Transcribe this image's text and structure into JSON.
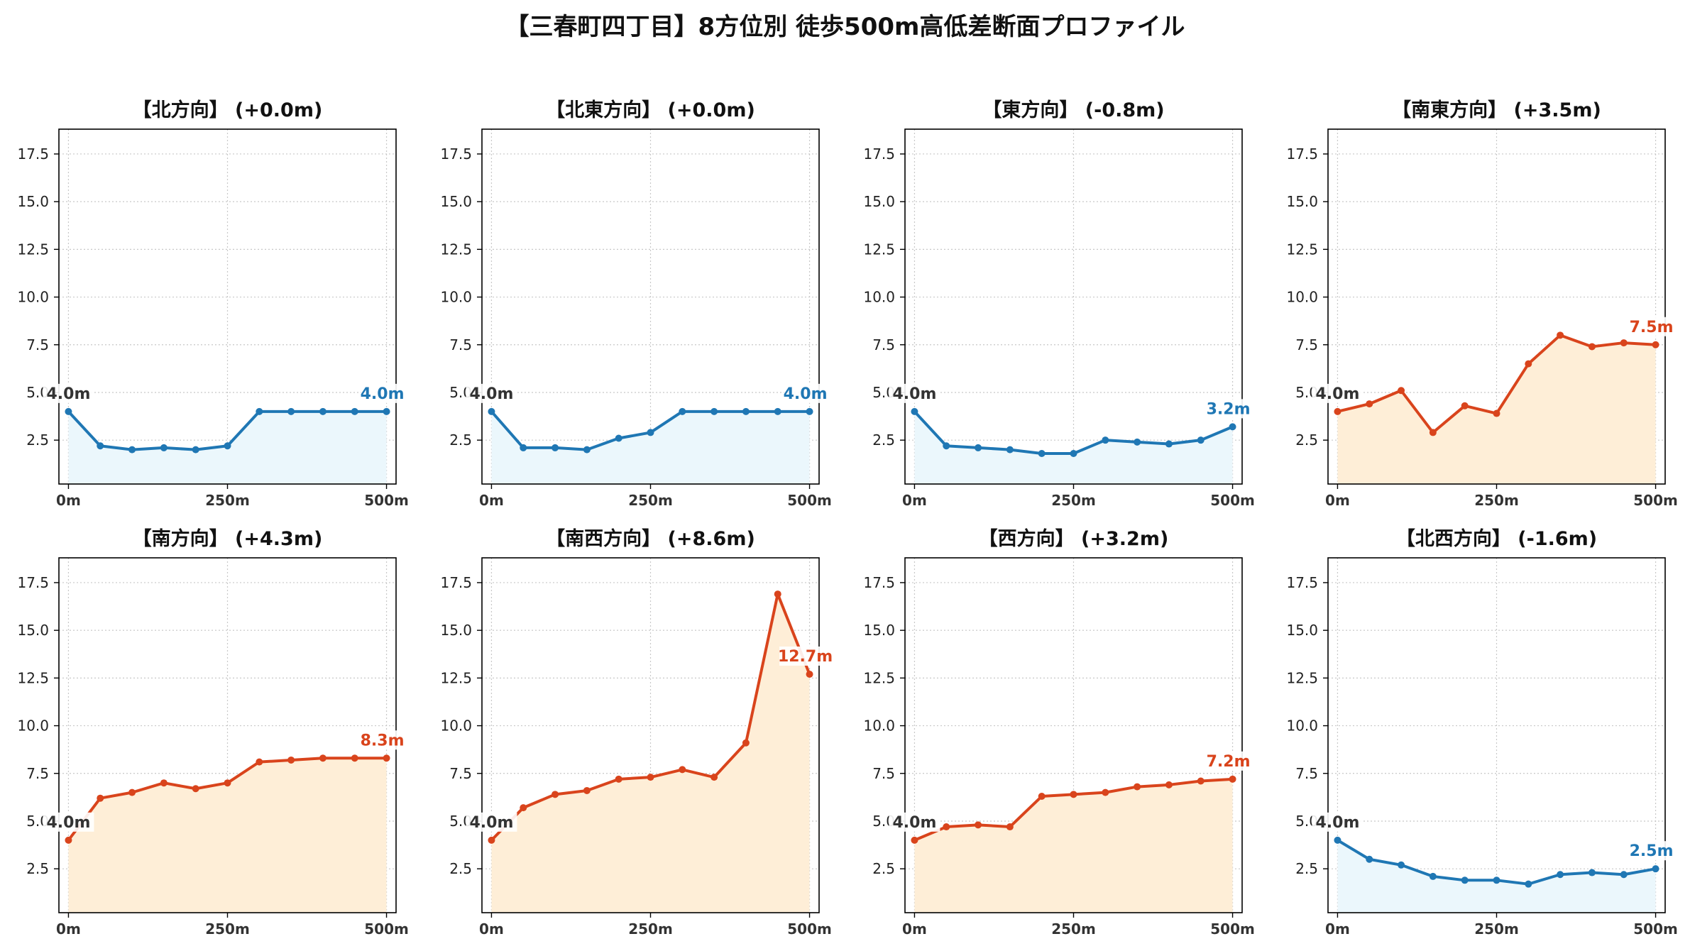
{
  "title": "【三春町四丁目】8方位別 徒歩500m高低差断面プロファイル",
  "colors": {
    "down_line": "#1f77b4",
    "down_fill": "#ebf7fc",
    "up_line": "#d9441c",
    "up_fill": "#feeed7",
    "start_label": "#333333",
    "grid": "#c8c8c8"
  },
  "chart_data": [
    {
      "type": "line",
      "title": "【北方向】 (+0.0m)",
      "trend": "down",
      "x": [
        0,
        50,
        100,
        150,
        200,
        250,
        300,
        350,
        400,
        450,
        500
      ],
      "y": [
        4.0,
        2.2,
        2.0,
        2.1,
        2.0,
        2.2,
        4.0,
        4.0,
        4.0,
        4.0,
        4.0
      ],
      "start_label": "4.0m",
      "end_label": "4.0m",
      "xticks": [
        "0m",
        "250m",
        "500m"
      ],
      "yticks": [
        "2.5",
        "5.0",
        "7.5",
        "10.0",
        "12.5",
        "15.0",
        "17.5"
      ],
      "xlim": [
        -15,
        515
      ],
      "ylim": [
        0.2,
        18.8
      ],
      "grid": true
    },
    {
      "type": "line",
      "title": "【北東方向】 (+0.0m)",
      "trend": "down",
      "x": [
        0,
        50,
        100,
        150,
        200,
        250,
        300,
        350,
        400,
        450,
        500
      ],
      "y": [
        4.0,
        2.1,
        2.1,
        2.0,
        2.6,
        2.9,
        4.0,
        4.0,
        4.0,
        4.0,
        4.0
      ],
      "start_label": "4.0m",
      "end_label": "4.0m",
      "xticks": [
        "0m",
        "250m",
        "500m"
      ],
      "yticks": [
        "2.5",
        "5.0",
        "7.5",
        "10.0",
        "12.5",
        "15.0",
        "17.5"
      ],
      "xlim": [
        -15,
        515
      ],
      "ylim": [
        0.2,
        18.8
      ],
      "grid": true
    },
    {
      "type": "line",
      "title": "【東方向】 (-0.8m)",
      "trend": "down",
      "x": [
        0,
        50,
        100,
        150,
        200,
        250,
        300,
        350,
        400,
        450,
        500
      ],
      "y": [
        4.0,
        2.2,
        2.1,
        2.0,
        1.8,
        1.8,
        2.5,
        2.4,
        2.3,
        2.5,
        3.2
      ],
      "start_label": "4.0m",
      "end_label": "3.2m",
      "xticks": [
        "0m",
        "250m",
        "500m"
      ],
      "yticks": [
        "2.5",
        "5.0",
        "7.5",
        "10.0",
        "12.5",
        "15.0",
        "17.5"
      ],
      "xlim": [
        -15,
        515
      ],
      "ylim": [
        0.2,
        18.8
      ],
      "grid": true
    },
    {
      "type": "line",
      "title": "【南東方向】 (+3.5m)",
      "trend": "up",
      "x": [
        0,
        50,
        100,
        150,
        200,
        250,
        300,
        350,
        400,
        450,
        500
      ],
      "y": [
        4.0,
        4.4,
        5.1,
        2.9,
        4.3,
        3.9,
        6.5,
        8.0,
        7.4,
        7.6,
        7.5
      ],
      "start_label": "4.0m",
      "end_label": "7.5m",
      "xticks": [
        "0m",
        "250m",
        "500m"
      ],
      "yticks": [
        "2.5",
        "5.0",
        "7.5",
        "10.0",
        "12.5",
        "15.0",
        "17.5"
      ],
      "xlim": [
        -15,
        515
      ],
      "ylim": [
        0.2,
        18.8
      ],
      "grid": true
    },
    {
      "type": "line",
      "title": "【南方向】 (+4.3m)",
      "trend": "up",
      "x": [
        0,
        50,
        100,
        150,
        200,
        250,
        300,
        350,
        400,
        450,
        500
      ],
      "y": [
        4.0,
        6.2,
        6.5,
        7.0,
        6.7,
        7.0,
        8.1,
        8.2,
        8.3,
        8.3,
        8.3
      ],
      "start_label": "4.0m",
      "end_label": "8.3m",
      "xticks": [
        "0m",
        "250m",
        "500m"
      ],
      "yticks": [
        "2.5",
        "5.0",
        "7.5",
        "10.0",
        "12.5",
        "15.0",
        "17.5"
      ],
      "xlim": [
        -15,
        515
      ],
      "ylim": [
        0.2,
        18.8
      ],
      "grid": true
    },
    {
      "type": "line",
      "title": "【南西方向】 (+8.6m)",
      "trend": "up",
      "x": [
        0,
        50,
        100,
        150,
        200,
        250,
        300,
        350,
        400,
        450,
        500
      ],
      "y": [
        4.0,
        5.7,
        6.4,
        6.6,
        7.2,
        7.3,
        7.7,
        7.3,
        9.1,
        16.9,
        12.7
      ],
      "start_label": "4.0m",
      "end_label": "12.7m",
      "xticks": [
        "0m",
        "250m",
        "500m"
      ],
      "yticks": [
        "2.5",
        "5.0",
        "7.5",
        "10.0",
        "12.5",
        "15.0",
        "17.5"
      ],
      "xlim": [
        -15,
        515
      ],
      "ylim": [
        0.2,
        18.8
      ],
      "grid": true
    },
    {
      "type": "line",
      "title": "【西方向】 (+3.2m)",
      "trend": "up",
      "x": [
        0,
        50,
        100,
        150,
        200,
        250,
        300,
        350,
        400,
        450,
        500
      ],
      "y": [
        4.0,
        4.7,
        4.8,
        4.7,
        6.3,
        6.4,
        6.5,
        6.8,
        6.9,
        7.1,
        7.2
      ],
      "start_label": "4.0m",
      "end_label": "7.2m",
      "xticks": [
        "0m",
        "250m",
        "500m"
      ],
      "yticks": [
        "2.5",
        "5.0",
        "7.5",
        "10.0",
        "12.5",
        "15.0",
        "17.5"
      ],
      "xlim": [
        -15,
        515
      ],
      "ylim": [
        0.2,
        18.8
      ],
      "grid": true
    },
    {
      "type": "line",
      "title": "【北西方向】 (-1.6m)",
      "trend": "down",
      "x": [
        0,
        50,
        100,
        150,
        200,
        250,
        300,
        350,
        400,
        450,
        500
      ],
      "y": [
        4.0,
        3.0,
        2.7,
        2.1,
        1.9,
        1.9,
        1.7,
        2.2,
        2.3,
        2.2,
        2.5
      ],
      "start_label": "4.0m",
      "end_label": "2.5m",
      "xticks": [
        "0m",
        "250m",
        "500m"
      ],
      "yticks": [
        "2.5",
        "5.0",
        "7.5",
        "10.0",
        "12.5",
        "15.0",
        "17.5"
      ],
      "xlim": [
        -15,
        515
      ],
      "ylim": [
        0.2,
        18.8
      ],
      "grid": true
    }
  ]
}
